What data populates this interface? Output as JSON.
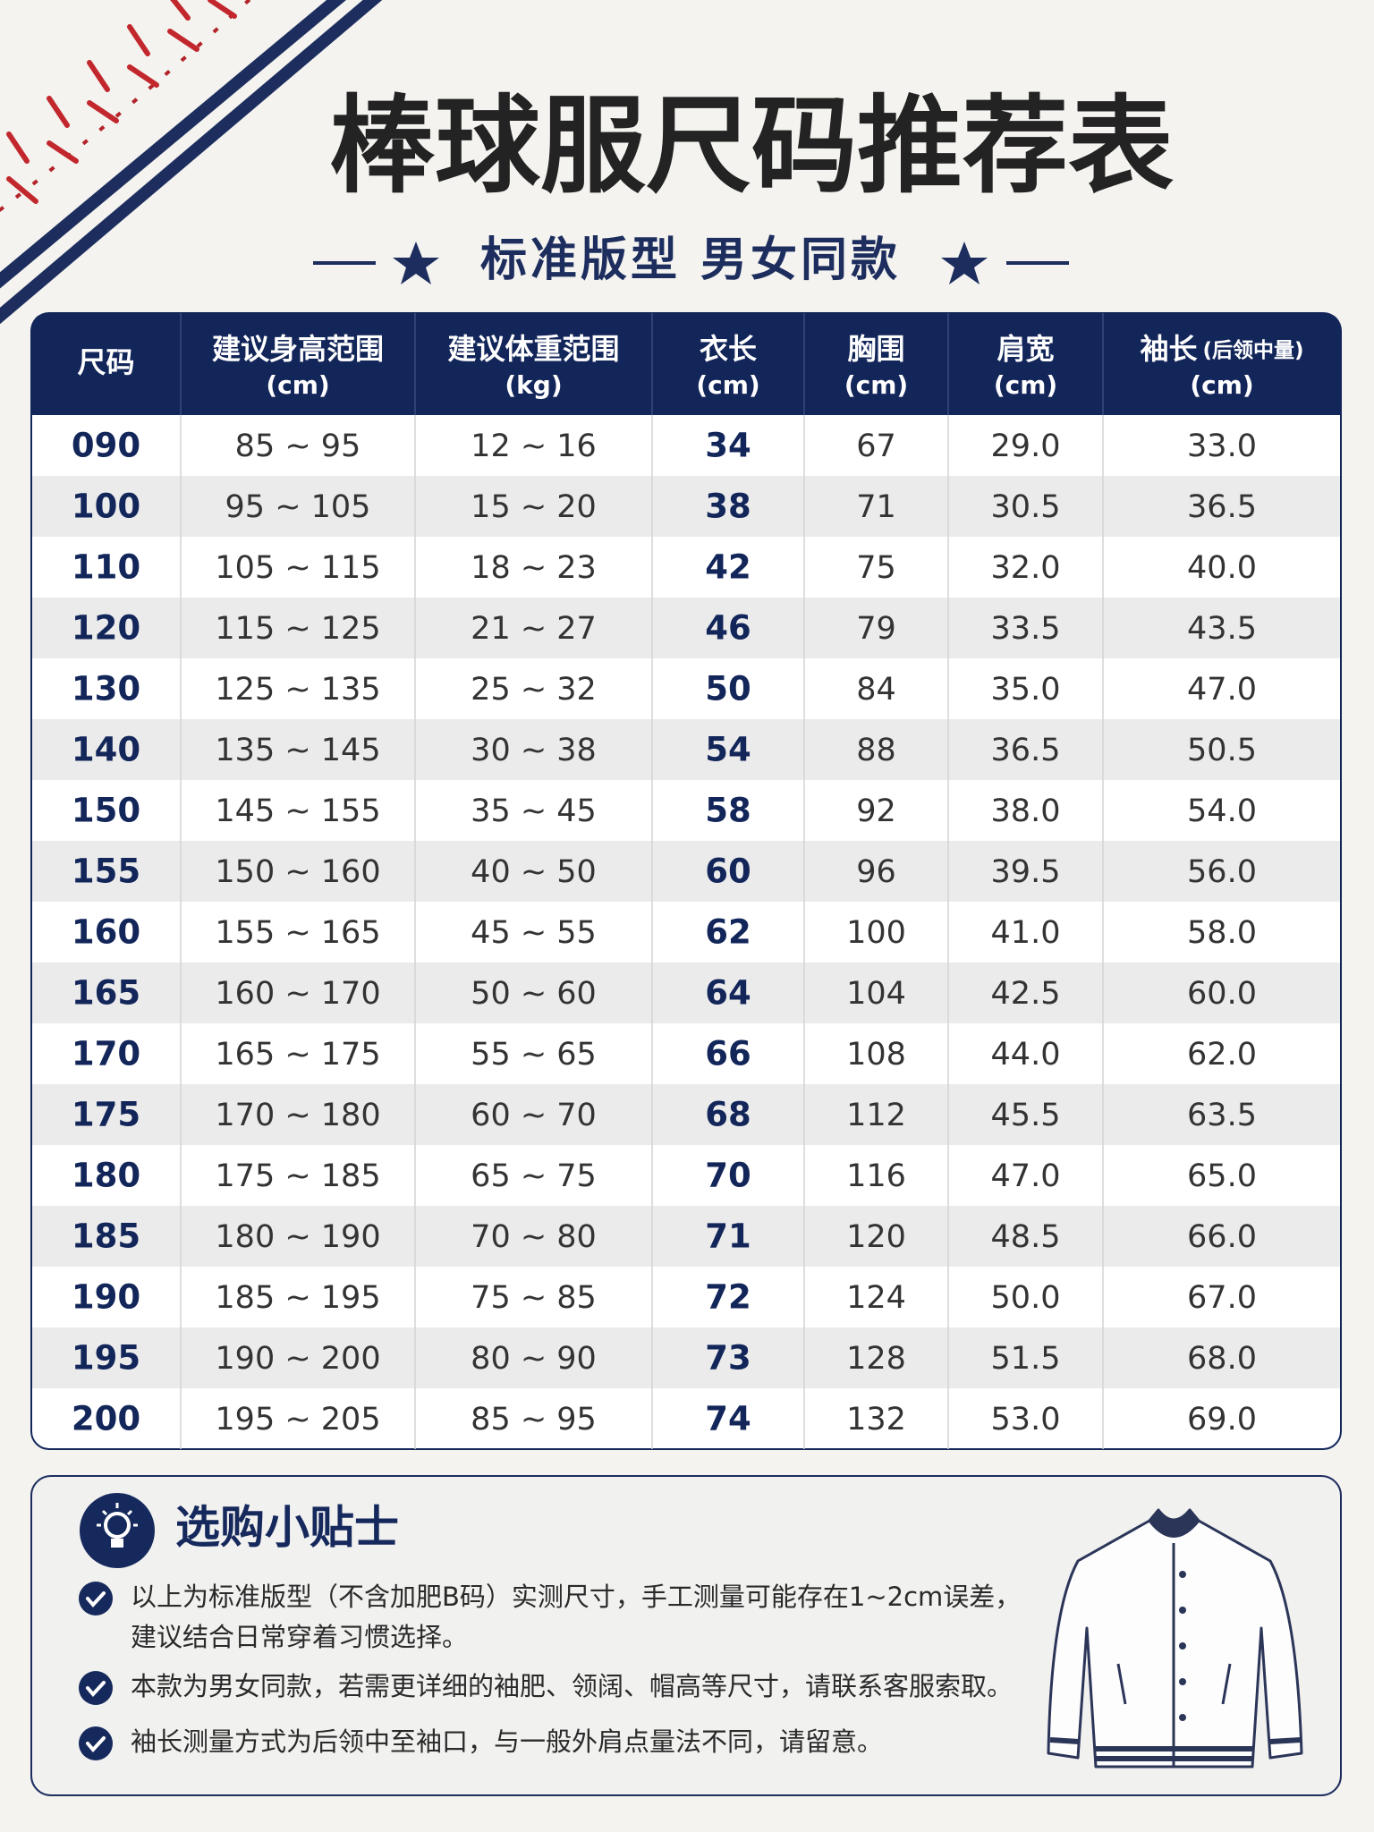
{
  "header": {
    "title": "棒球服尺码推荐表",
    "subtitle": "标准版型 男女同款"
  },
  "table": {
    "columns": [
      {
        "name": "尺码"
      },
      {
        "name": "建议身高范围",
        "unit": "(cm)"
      },
      {
        "name": "建议体重范围",
        "unit": "(kg)"
      },
      {
        "name": "衣长",
        "unit": "(cm)"
      },
      {
        "name": "胸围",
        "unit": "(cm)"
      },
      {
        "name": "肩宽",
        "unit": "(cm)"
      },
      {
        "name": "袖长",
        "note": "(后领中量)",
        "unit": "(cm)"
      }
    ],
    "rows": [
      [
        "090",
        "85 ~ 95",
        "12 ~ 16",
        "34",
        "67",
        "29.0",
        "33.0"
      ],
      [
        "100",
        "95 ~ 105",
        "15 ~ 20",
        "38",
        "71",
        "30.5",
        "36.5"
      ],
      [
        "110",
        "105 ~ 115",
        "18 ~ 23",
        "42",
        "75",
        "32.0",
        "40.0"
      ],
      [
        "120",
        "115 ~ 125",
        "21 ~ 27",
        "46",
        "79",
        "33.5",
        "43.5"
      ],
      [
        "130",
        "125 ~ 135",
        "25 ~ 32",
        "50",
        "84",
        "35.0",
        "47.0"
      ],
      [
        "140",
        "135 ~ 145",
        "30 ~ 38",
        "54",
        "88",
        "36.5",
        "50.5"
      ],
      [
        "150",
        "145 ~ 155",
        "35 ~ 45",
        "58",
        "92",
        "38.0",
        "54.0"
      ],
      [
        "155",
        "150 ~ 160",
        "40 ~ 50",
        "60",
        "96",
        "39.5",
        "56.0"
      ],
      [
        "160",
        "155 ~ 165",
        "45 ~ 55",
        "62",
        "100",
        "41.0",
        "58.0"
      ],
      [
        "165",
        "160 ~ 170",
        "50 ~ 60",
        "64",
        "104",
        "42.5",
        "60.0"
      ],
      [
        "170",
        "165 ~ 175",
        "55 ~ 65",
        "66",
        "108",
        "44.0",
        "62.0"
      ],
      [
        "175",
        "170 ~ 180",
        "60 ~ 70",
        "68",
        "112",
        "45.5",
        "63.5"
      ],
      [
        "180",
        "175 ~ 185",
        "65 ~ 75",
        "70",
        "116",
        "47.0",
        "65.0"
      ],
      [
        "185",
        "180 ~ 190",
        "70 ~ 80",
        "71",
        "120",
        "48.5",
        "66.0"
      ],
      [
        "190",
        "185 ~ 195",
        "75 ~ 85",
        "72",
        "124",
        "50.0",
        "67.0"
      ],
      [
        "195",
        "190 ~ 200",
        "80 ~ 90",
        "73",
        "128",
        "51.5",
        "68.0"
      ],
      [
        "200",
        "195 ~ 205",
        "85 ~ 95",
        "74",
        "132",
        "53.0",
        "69.0"
      ]
    ]
  },
  "tips": {
    "title": "选购小贴士",
    "items": [
      [
        "以上为标准版型（不含加肥B码）实测尺寸，手工测量可能存在1~2cm误差，",
        "建议结合日常穿着习惯选择。"
      ],
      [
        "本款为男女同款，若需更详细的袖肥、领阔、帽高等尺寸，请联系客服索取。"
      ],
      [
        "袖长测量方式为后领中至袖口，与一般外肩点量法不同，请留意。"
      ]
    ]
  }
}
